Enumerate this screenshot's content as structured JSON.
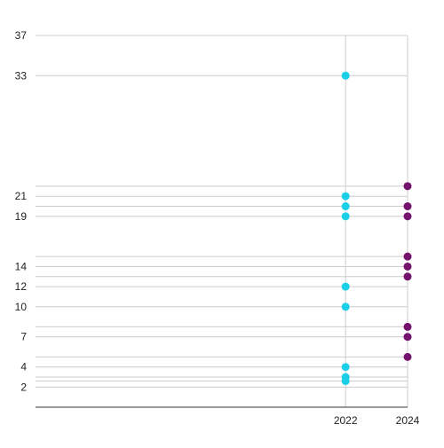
{
  "chart_data": {
    "type": "scatter",
    "title": "",
    "xlabel": "",
    "ylabel": "",
    "x_tick_labels": [
      "2022",
      "2024"
    ],
    "y_tick_labels": [
      "37",
      "33",
      "21",
      "19",
      "14",
      "12",
      "10",
      "7",
      "4",
      "2"
    ],
    "ylim": [
      0,
      37
    ],
    "xlim": [
      2012,
      2024
    ],
    "grid": true,
    "legend": "none",
    "series": [
      {
        "color": "#1ccfe8",
        "points": [
          {
            "x": 2022,
            "y": 33
          },
          {
            "x": 2022,
            "y": 21
          },
          {
            "x": 2022,
            "y": 20
          },
          {
            "x": 2022,
            "y": 19
          },
          {
            "x": 2022,
            "y": 12
          },
          {
            "x": 2022,
            "y": 10
          },
          {
            "x": 2022,
            "y": 4
          },
          {
            "x": 2022,
            "y": 3
          },
          {
            "x": 2022,
            "y": 2.6
          }
        ]
      },
      {
        "color": "#74136e",
        "points": [
          {
            "x": 2024,
            "y": 22
          },
          {
            "x": 2024,
            "y": 20
          },
          {
            "x": 2024,
            "y": 19
          },
          {
            "x": 2024,
            "y": 15
          },
          {
            "x": 2024,
            "y": 14
          },
          {
            "x": 2024,
            "y": 13
          },
          {
            "x": 2024,
            "y": 8
          },
          {
            "x": 2024,
            "y": 7
          },
          {
            "x": 2024,
            "y": 5
          }
        ]
      }
    ]
  }
}
